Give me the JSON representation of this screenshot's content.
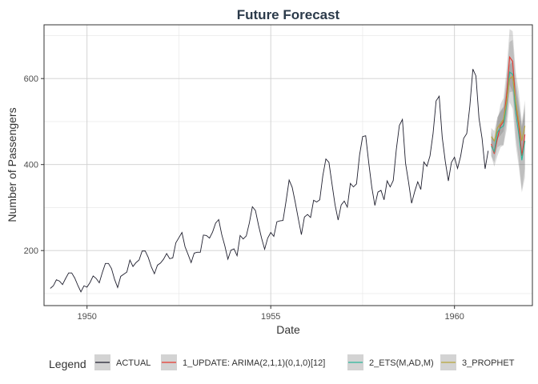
{
  "chart_data": {
    "type": "line",
    "title": "Future Forecast",
    "xlabel": "Date",
    "ylabel": "Number of Passengers",
    "xlim": [
      1948.83,
      1962.12
    ],
    "ylim": [
      72,
      725
    ],
    "x_ticks": [
      1950,
      1955,
      1960
    ],
    "y_ticks": [
      200,
      400,
      600
    ],
    "grid": true,
    "legend_position": "bottom",
    "legend_title": "Legend",
    "actual": {
      "name": "ACTUAL",
      "color": "#1f1f2e",
      "start_year": 1949,
      "start_month": 1,
      "values": [
        112,
        118,
        132,
        129,
        121,
        135,
        148,
        148,
        136,
        119,
        104,
        118,
        115,
        126,
        141,
        135,
        125,
        149,
        170,
        170,
        158,
        133,
        114,
        140,
        145,
        150,
        178,
        163,
        172,
        178,
        199,
        199,
        184,
        162,
        146,
        166,
        171,
        180,
        193,
        181,
        183,
        218,
        230,
        242,
        209,
        191,
        172,
        194,
        196,
        196,
        236,
        235,
        229,
        243,
        264,
        272,
        237,
        211,
        180,
        201,
        204,
        188,
        235,
        227,
        234,
        264,
        302,
        293,
        259,
        229,
        203,
        229,
        242,
        233,
        267,
        269,
        270,
        315,
        364,
        347,
        312,
        274,
        237,
        278,
        284,
        277,
        317,
        313,
        318,
        374,
        413,
        405,
        355,
        306,
        271,
        306,
        315,
        301,
        356,
        348,
        355,
        422,
        465,
        467,
        404,
        347,
        305,
        336,
        340,
        318,
        362,
        348,
        363,
        435,
        491,
        505,
        404,
        359,
        310,
        337,
        360,
        342,
        406,
        396,
        420,
        472,
        548,
        559,
        463,
        407,
        362,
        405,
        417,
        391,
        419,
        461,
        472,
        535,
        622,
        606,
        508,
        461,
        390,
        432
      ]
    },
    "forecast_x": [
      1961.0,
      1961.083,
      1961.167,
      1961.25,
      1961.333,
      1961.417,
      1961.5,
      1961.583,
      1961.667,
      1961.75,
      1961.833,
      1961.917
    ],
    "series": [
      {
        "name": "1_UPDATE: ARIMA(2,1,1)(0,1,0)[12]",
        "color": "#e8382f",
        "values": [
          448,
          425,
          460,
          490,
          500,
          560,
          650,
          640,
          540,
          490,
          420,
          470
        ],
        "lower": [
          420,
          395,
          420,
          440,
          445,
          500,
          585,
          570,
          465,
          410,
          340,
          390
        ],
        "upper": [
          478,
          455,
          500,
          540,
          555,
          620,
          715,
          710,
          615,
          570,
          500,
          550
        ]
      },
      {
        "name": "2_ETS(M,AD,M)",
        "color": "#2bb89a",
        "values": [
          443,
          430,
          475,
          485,
          490,
          540,
          615,
          610,
          520,
          470,
          410,
          455
        ],
        "lower": [
          420,
          405,
          440,
          445,
          445,
          480,
          545,
          530,
          445,
          395,
          335,
          370
        ],
        "upper": [
          466,
          455,
          510,
          525,
          535,
          600,
          685,
          690,
          595,
          545,
          485,
          540
        ]
      },
      {
        "name": "3_PROPHET",
        "color": "#b8a63a",
        "values": [
          465,
          455,
          485,
          495,
          505,
          545,
          600,
          605,
          545,
          500,
          455,
          490
        ],
        "lower": [
          445,
          432,
          460,
          468,
          477,
          515,
          568,
          570,
          512,
          465,
          420,
          452
        ],
        "upper": [
          485,
          478,
          510,
          522,
          533,
          575,
          632,
          640,
          578,
          535,
          490,
          528
        ]
      }
    ]
  }
}
